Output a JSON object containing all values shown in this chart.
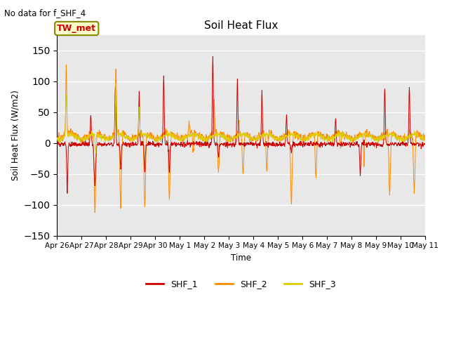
{
  "title": "Soil Heat Flux",
  "ylabel": "Soil Heat Flux (W/m2)",
  "xlabel": "Time",
  "top_left_text": "No data for f_SHF_4",
  "annotation_text": "TW_met",
  "ylim": [
    -150,
    175
  ],
  "yticks": [
    -150,
    -100,
    -50,
    0,
    50,
    100,
    150
  ],
  "colors": {
    "SHF_1": "#cc0000",
    "SHF_2": "#ff8800",
    "SHF_3": "#ddcc00"
  },
  "background_color": "#e8e8e8",
  "x_tick_labels": [
    "Apr 26",
    "Apr 27",
    "Apr 28",
    "Apr 29",
    "Apr 30",
    "May 1",
    "May 2",
    "May 3",
    "May 4",
    "May 5",
    "May 6",
    "May 7",
    "May 8",
    "May 9",
    "May 10",
    "May 11"
  ],
  "n_days": 15,
  "pts_per_day": 96
}
